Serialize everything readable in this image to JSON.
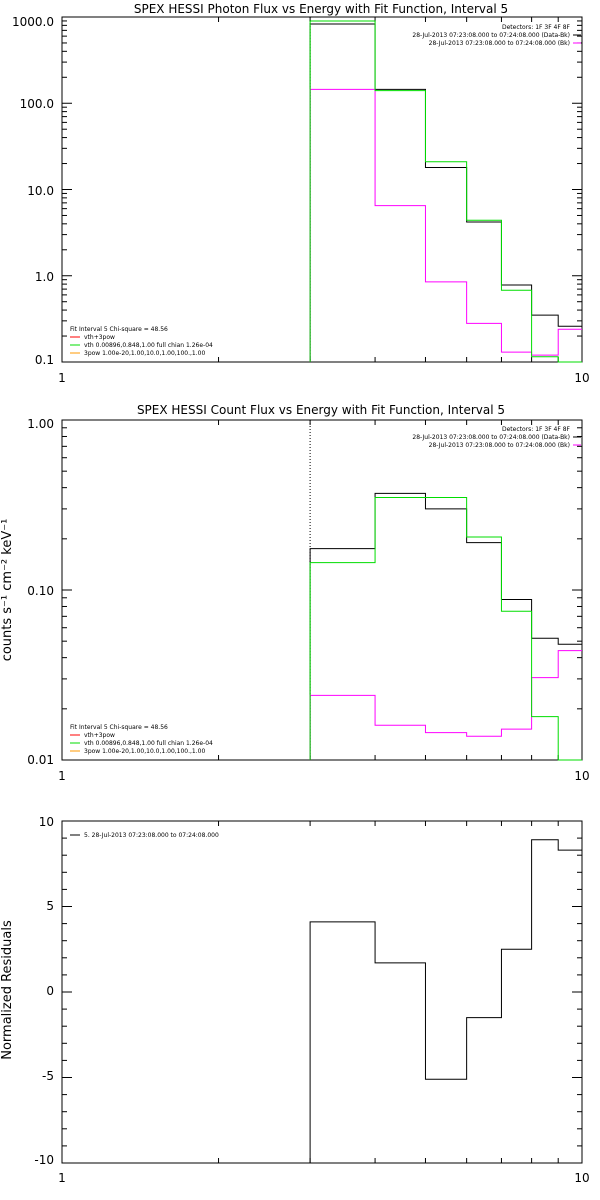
{
  "chart_data": [
    {
      "type": "line",
      "title": "SPEX HESSI Photon Flux vs Energy with Fit Function, Interval 5",
      "ylabel": "",
      "xlabel": "",
      "xscale": "log",
      "yscale": "log",
      "xlim": [
        1,
        10
      ],
      "ylim": [
        0.1,
        1000
      ],
      "x_ticks": [
        "1",
        "10"
      ],
      "y_ticks": [
        "1000.0",
        "100.0",
        "10.0",
        "1.0",
        "0.1"
      ],
      "x_edges": [
        3,
        4,
        5,
        6,
        7,
        8,
        9,
        10
      ],
      "vline_x": 3,
      "legend_top_right": [
        "Detectors: 1F 3F 4F 8F",
        "28-Jul-2013 07:23:08.000 to 07:24:08.000 (Data-Bk)",
        "28-Jul-2013 07:23:08.000 to 07:24:08.000 (Bk)"
      ],
      "legend_bottom_left": [
        "Fit Interval 5   Chi-square = 48.56",
        "vth+3pow",
        "vth 0.00896,0.848,1.00  full chian 1.26e-04",
        "3pow 1.00e-20,1.00,10.0,1.00,100.,1.00"
      ],
      "colors": {
        "data": "#000000",
        "bk": "#ff00ff",
        "fit": "#00dd00",
        "fit_legend": "#ff0000"
      },
      "series": [
        {
          "name": "28-Jul-2013 07:23:08.000 to 07:24:08.000 (Data-Bk)",
          "color": "#000000",
          "values": [
            830,
            145,
            18,
            4.2,
            0.78,
            0.35,
            0.26
          ]
        },
        {
          "name": "28-Jul-2013 07:23:08.000 to 07:24:08.000 (Bk)",
          "color": "#ff00ff",
          "values": [
            145,
            6.5,
            0.85,
            0.28,
            0.13,
            0.12,
            0.24
          ]
        },
        {
          "name": "vth 0.00896,0.848,1.00  full chian 1.26e-04",
          "color": "#00dd00",
          "values": [
            900,
            140,
            21,
            4.4,
            0.68,
            0.115,
            0.1
          ]
        }
      ]
    },
    {
      "type": "line",
      "title": "SPEX HESSI Count Flux vs Energy with Fit Function, Interval 5",
      "ylabel": "counts s⁻¹ cm⁻² keV⁻¹",
      "xlabel": "",
      "xscale": "log",
      "yscale": "log",
      "xlim": [
        1,
        10
      ],
      "ylim": [
        0.01,
        1
      ],
      "x_ticks": [
        "1",
        "10"
      ],
      "y_ticks": [
        "1.00",
        "0.10",
        "0.01"
      ],
      "x_edges": [
        3,
        4,
        5,
        6,
        7,
        8,
        9,
        10
      ],
      "vline_x": 3,
      "legend_top_right": [
        "Detectors: 1F 3F 4F 8F",
        "28-Jul-2013 07:23:08.000 to 07:24:08.000 (Data-Bk)",
        "28-Jul-2013 07:23:08.000 to 07:24:08.000 (Bk)"
      ],
      "legend_bottom_left": [
        "Fit Interval 5   Chi-square = 48.56",
        "vth+3pow",
        "vth 0.00896,0.848,1.00  full chian 1.26e-04",
        "3pow 1.00e-20,1.00,10.0,1.00,100.,1.00"
      ],
      "colors": {
        "data": "#000000",
        "bk": "#ff00ff",
        "fit": "#00dd00",
        "fit_legend": "#ff0000"
      },
      "series": [
        {
          "name": "28-Jul-2013 07:23:08.000 to 07:24:08.000 (Data-Bk)",
          "color": "#000000",
          "values": [
            0.175,
            0.37,
            0.3,
            0.19,
            0.088,
            0.052,
            0.048
          ]
        },
        {
          "name": "28-Jul-2013 07:23:08.000 to 07:24:08.000 (Bk)",
          "color": "#ff00ff",
          "values": [
            0.024,
            0.016,
            0.0145,
            0.0138,
            0.0152,
            0.0305,
            0.044
          ]
        },
        {
          "name": "vth 0.00896,0.848,1.00  full chian 1.26e-04",
          "color": "#00dd00",
          "values": [
            0.145,
            0.35,
            0.35,
            0.205,
            0.075,
            0.018,
            0.0085
          ]
        }
      ]
    },
    {
      "type": "line",
      "title": "",
      "ylabel": "Normalized Residuals",
      "xlabel": "",
      "xscale": "log",
      "yscale": "linear",
      "xlim": [
        1,
        10
      ],
      "ylim": [
        -10,
        10
      ],
      "x_ticks": [
        "1",
        "10"
      ],
      "y_ticks": [
        "10",
        "5",
        "0",
        "-5",
        "-10"
      ],
      "x_edges": [
        3,
        4,
        5,
        6,
        7,
        8,
        9,
        10
      ],
      "legend_top_left": [
        "5. 28-Jul-2013 07:23:08.000 to 07:24:08.000"
      ],
      "colors": {
        "data": "#000000"
      },
      "series": [
        {
          "name": "5. 28-Jul-2013 07:23:08.000 to 07:24:08.000",
          "color": "#000000",
          "values": [
            4.1,
            1.7,
            -5.1,
            -1.5,
            2.5,
            8.9,
            8.3
          ]
        }
      ]
    }
  ]
}
